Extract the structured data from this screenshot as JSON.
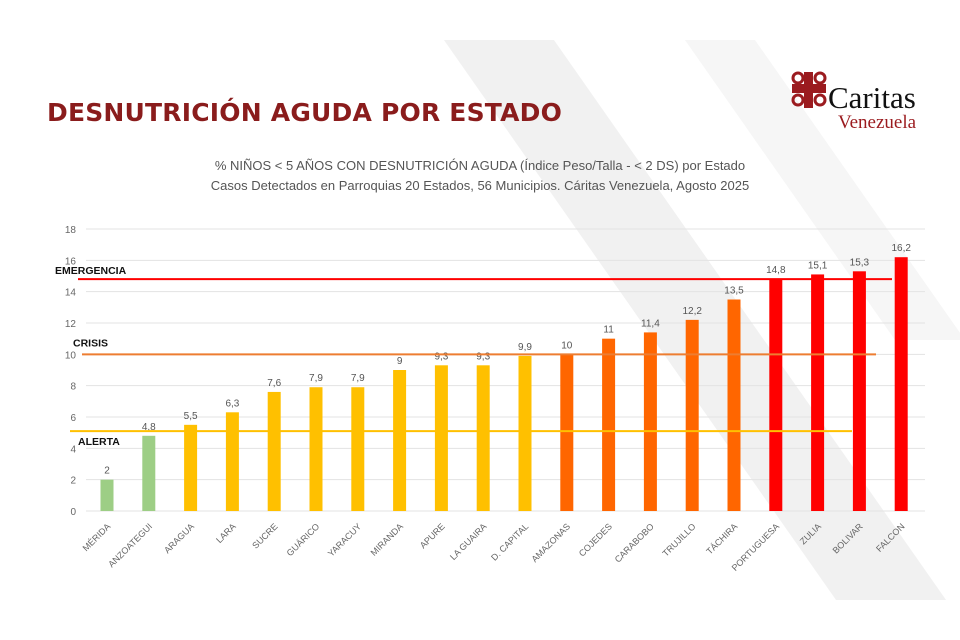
{
  "header": {
    "title": "DESNUTRICIÓN AGUDA POR ESTADO",
    "logo_text": "Caritas",
    "logo_subtext": "Venezuela"
  },
  "chart_data": {
    "type": "bar",
    "title": "% NIÑOS < 5 AÑOS CON DESNUTRICIÓN AGUDA (Índice Peso/Talla - < 2 DS) por Estado",
    "subtitle": "Casos Detectados en Parroquias 20 Estados, 56 Municipios. Cáritas Venezuela, Agosto 2025",
    "xlabel": "",
    "ylabel": "",
    "ylim": [
      0,
      18
    ],
    "yticks": [
      0,
      2,
      4,
      6,
      8,
      10,
      12,
      14,
      16,
      18
    ],
    "grid": true,
    "categories": [
      "MÉRIDA",
      "ANZOATEGUI",
      "ARAGUA",
      "LARA",
      "SUCRE",
      "GUÁRICO",
      "YARACUY",
      "MIRANDA",
      "APURE",
      "LA GUAIRA",
      "D. CAPITAL",
      "AMAZONAS",
      "COJEDES",
      "CARABOBO",
      "TRUJILLO",
      "TÁCHIRA",
      "PORTUGUESA",
      "ZULIA",
      "BOLIVAR",
      "FALCON"
    ],
    "values": [
      2,
      4.8,
      5.5,
      6.3,
      7.6,
      7.9,
      7.9,
      9,
      9.3,
      9.3,
      9.9,
      10,
      11,
      11.4,
      12.2,
      13.5,
      14.8,
      15.1,
      15.3,
      16.2
    ],
    "data_labels": [
      "2",
      "4,8",
      "5,5",
      "6,3",
      "7,6",
      "7,9",
      "7,9",
      "9",
      "9,3",
      "9,3",
      "9,9",
      "10",
      "11",
      "11,4",
      "12,2",
      "13,5",
      "14,8",
      "15,1",
      "15,3",
      "16,2"
    ],
    "bar_colors": [
      "#9dce85",
      "#9dce85",
      "#ffc000",
      "#ffc000",
      "#ffc000",
      "#ffc000",
      "#ffc000",
      "#ffc000",
      "#ffc000",
      "#ffc000",
      "#ffc000",
      "#ff6600",
      "#ff6600",
      "#ff6600",
      "#ff6600",
      "#ff6600",
      "#ff0000",
      "#ff0000",
      "#ff0000",
      "#ff0000"
    ],
    "thresholds": [
      {
        "label": "EMERGENCIA",
        "value": 14.8,
        "color": "#ff0000"
      },
      {
        "label": "CRISIS",
        "value": 10,
        "color": "#ed7d31"
      },
      {
        "label": "ALERTA",
        "value": 5.1,
        "color": "#ffc000"
      }
    ]
  }
}
